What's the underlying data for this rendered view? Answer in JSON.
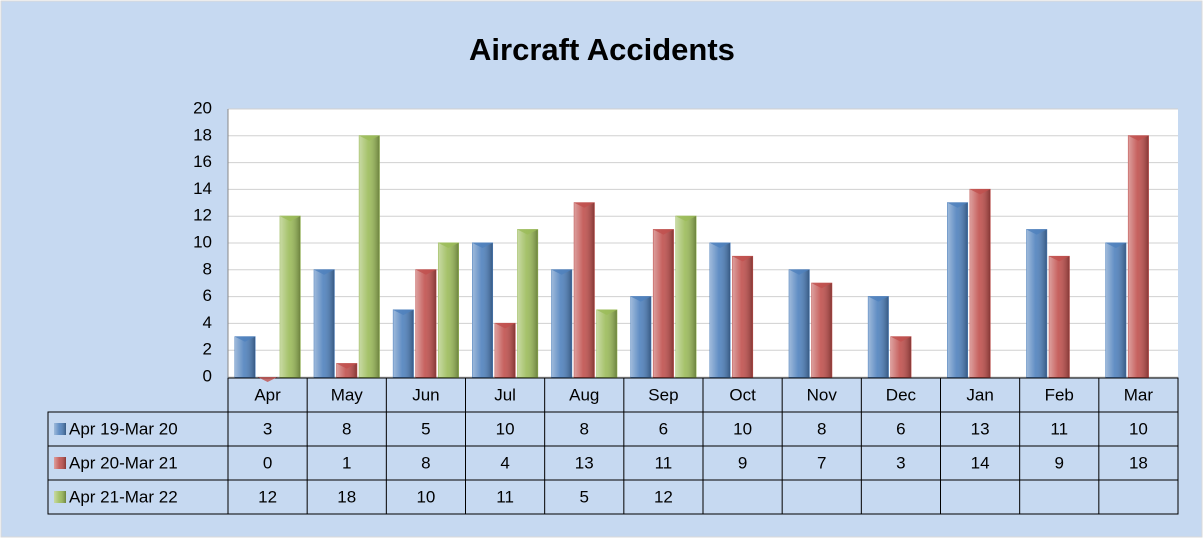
{
  "chart_data": {
    "type": "bar",
    "title": "Aircraft Accidents",
    "categories": [
      "Apr",
      "May",
      "Jun",
      "Jul",
      "Aug",
      "Sep",
      "Oct",
      "Nov",
      "Dec",
      "Jan",
      "Feb",
      "Mar"
    ],
    "series": [
      {
        "name": "Apr 19-Mar 20",
        "color": "#4f81bd",
        "values": [
          3,
          8,
          5,
          10,
          8,
          6,
          10,
          8,
          6,
          13,
          11,
          10
        ]
      },
      {
        "name": "Apr 20-Mar 21",
        "color": "#c0504d",
        "values": [
          0,
          1,
          8,
          4,
          13,
          11,
          9,
          7,
          3,
          14,
          9,
          18
        ]
      },
      {
        "name": "Apr 21-Mar 22",
        "color": "#9bbb59",
        "values": [
          12,
          18,
          10,
          11,
          5,
          12,
          null,
          null,
          null,
          null,
          null,
          null
        ]
      }
    ],
    "ylim": [
      0,
      20
    ],
    "yticks": [
      0,
      2,
      4,
      6,
      8,
      10,
      12,
      14,
      16,
      18,
      20
    ],
    "grid": true
  }
}
